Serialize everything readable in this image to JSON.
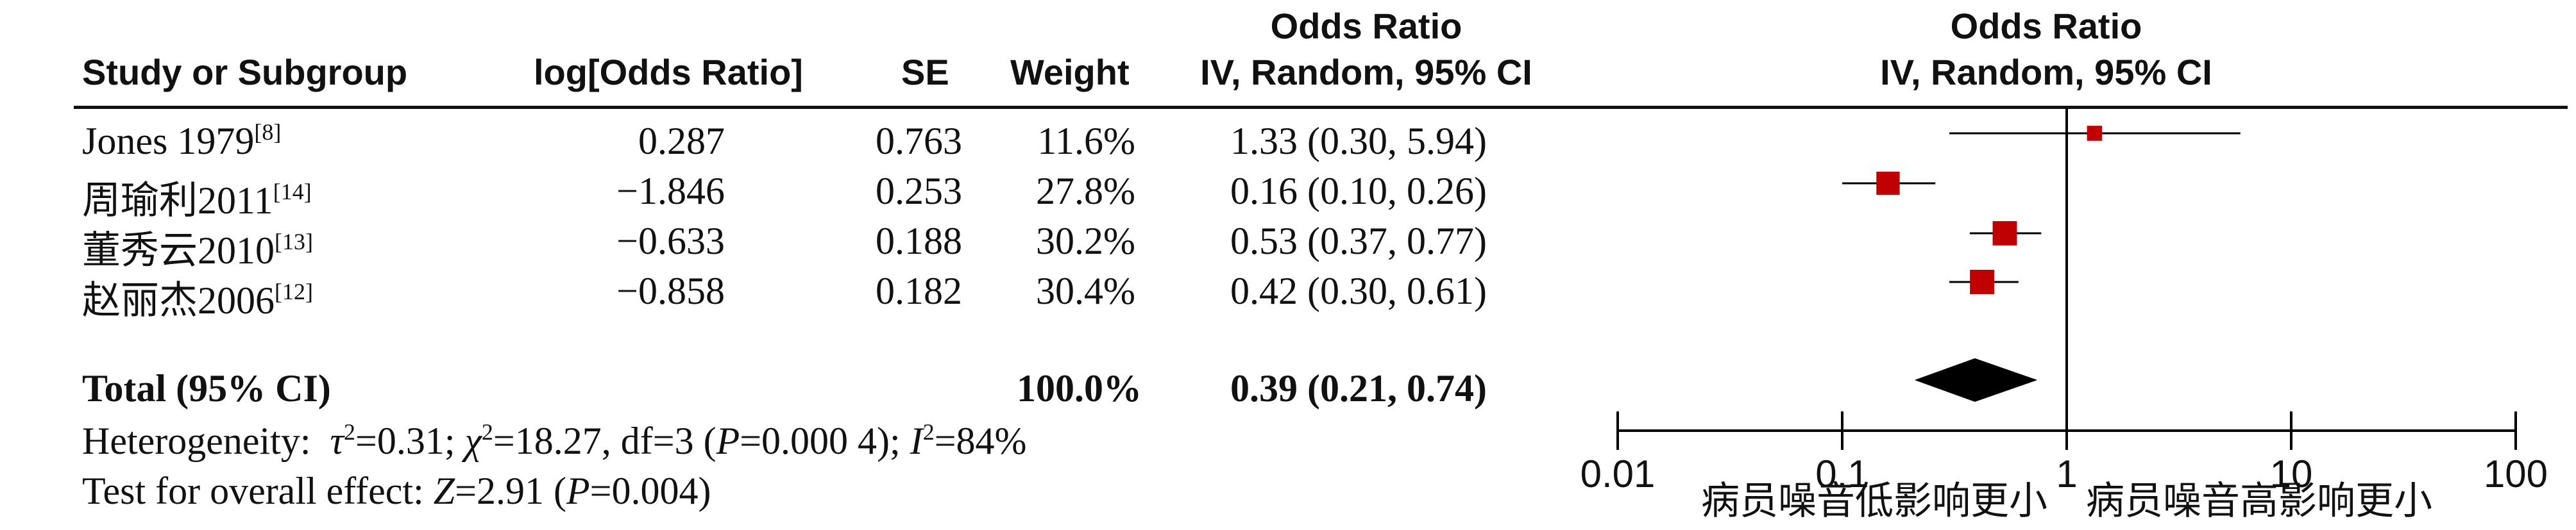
{
  "headers": {
    "study": "Study or Subgroup",
    "log_or": "log[Odds Ratio]",
    "se": "SE",
    "weight": "Weight",
    "or_title": "Odds Ratio",
    "or_method": "IV, Random, 95% CI",
    "plot_title": "Odds Ratio",
    "plot_method": "IV, Random, 95% CI"
  },
  "studies": [
    {
      "name": "Jones 1979",
      "ref": "[8]",
      "log_or": "0.287",
      "se": "0.763",
      "weight": "11.6%",
      "ci_text": "1.33 (0.30, 5.94)"
    },
    {
      "name": "周瑜利2011",
      "ref": "[14]",
      "log_or": "−1.846",
      "se": "0.253",
      "weight": "27.8%",
      "ci_text": "0.16 (0.10, 0.26)"
    },
    {
      "name": "董秀云2010",
      "ref": "[13]",
      "log_or": "−0.633",
      "se": "0.188",
      "weight": "30.2%",
      "ci_text": "0.53 (0.37, 0.77)"
    },
    {
      "name": "赵丽杰2006",
      "ref": "[12]",
      "log_or": "−0.858",
      "se": "0.182",
      "weight": "30.4%",
      "ci_text": "0.42 (0.30, 0.61)"
    }
  ],
  "total": {
    "label": "Total (95% CI)",
    "weight": "100.0%",
    "ci_text": "0.39 (0.21, 0.74)"
  },
  "heterogeneity": {
    "label": "Heterogeneity:",
    "tau": "τ",
    "tau_val": "=0.31; ",
    "chi": "χ",
    "chi_val": "=18.27, df=3 (",
    "p": "P",
    "p_val": "=0.000 4); ",
    "i": "I",
    "i_val": "=84%",
    "sq": "2"
  },
  "overall": {
    "label": "Test for overall effect: ",
    "z": "Z",
    "z_val": "=2.91 (",
    "p": "P",
    "p_val": "=0.004)"
  },
  "chart_data": {
    "type": "forest",
    "title": "Odds Ratio",
    "subtitle": "IV, Random, 95% CI",
    "x_scale": "log",
    "xlim": [
      0.01,
      100
    ],
    "x_ticks": [
      0.01,
      0.1,
      1,
      10,
      100
    ],
    "x_tick_labels": [
      "0.01",
      "0.1",
      "1",
      "10",
      "100"
    ],
    "reference_line": 1,
    "favours_left": "病员噪音低影响更小",
    "favours_right": "病员噪音高影响更小",
    "marker_color": "#c00000",
    "diamond_color": "#000000",
    "points": [
      {
        "study": "Jones 1979",
        "or": 1.33,
        "lower": 0.3,
        "upper": 5.94,
        "weight": 11.6
      },
      {
        "study": "周瑜利2011",
        "or": 0.16,
        "lower": 0.1,
        "upper": 0.26,
        "weight": 27.8
      },
      {
        "study": "董秀云2010",
        "or": 0.53,
        "lower": 0.37,
        "upper": 0.77,
        "weight": 30.2
      },
      {
        "study": "赵丽杰2006",
        "or": 0.42,
        "lower": 0.3,
        "upper": 0.61,
        "weight": 30.4
      }
    ],
    "pooled": {
      "or": 0.39,
      "lower": 0.21,
      "upper": 0.74
    }
  }
}
